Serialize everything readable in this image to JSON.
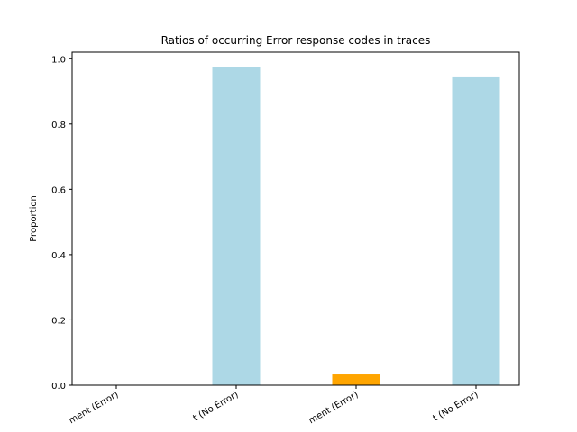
{
  "chart_data": {
    "type": "bar",
    "title": "Ratios of occurring Error response codes in traces",
    "xlabel": "",
    "ylabel": "Proportion",
    "ylim": [
      0,
      1.02
    ],
    "yticks": [
      "0.0",
      "0.2",
      "0.4",
      "0.6",
      "0.8",
      "1.0"
    ],
    "grid": false,
    "categories": [
      "ment (Error)",
      "t (No Error)",
      "ment (Error)",
      "t (No Error)"
    ],
    "values": [
      0.0,
      0.975,
      0.033,
      0.943
    ],
    "colors": [
      "#add8e6",
      "#add8e6",
      "#ffa500",
      "#add8e6"
    ]
  }
}
